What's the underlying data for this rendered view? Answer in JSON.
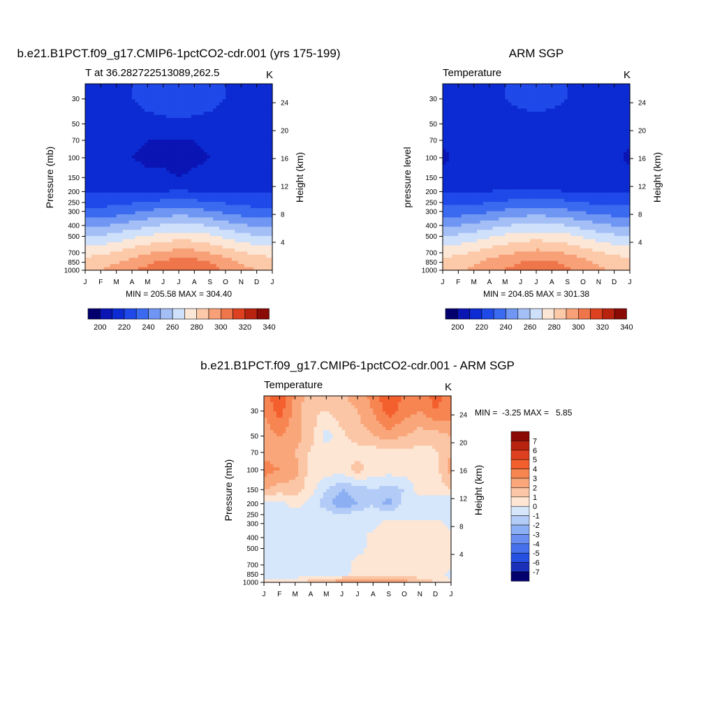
{
  "figure": {
    "panel1_title": "b.e21.B1PCT.f09_g17.CMIP6-1pctCO2-cdr.001 (yrs 175-199)",
    "panel2_title": "ARM SGP",
    "panel3_title": "b.e21.B1PCT.f09_g17.CMIP6-1pctCO2-cdr.001 - ARM SGP"
  },
  "chart_data": [
    {
      "type": "heatmap",
      "title": "b.e21.B1PCT.f09_g17.CMIP6-1pctCO2-cdr.001 (yrs 175-199)",
      "left_label": "T at 36.282722513089,262.5",
      "right_label": "K",
      "xlabel": "",
      "ylabel": "Pressure (mb)",
      "ylabel_right": "Height (km)",
      "x_ticks": [
        "J",
        "F",
        "M",
        "A",
        "M",
        "J",
        "J",
        "A",
        "S",
        "O",
        "N",
        "D",
        "J"
      ],
      "y_ticks": [
        "30",
        "50",
        "70",
        "100",
        "150",
        "200",
        "250",
        "300",
        "400",
        "500",
        "700",
        "850",
        "1000"
      ],
      "y_ticks_right": [
        "24",
        "20",
        "16",
        "12",
        "8",
        "4"
      ],
      "ylim": [
        1000,
        20
      ],
      "y_scale": "log",
      "stats": "MIN = 205.58 MAX = 304.40",
      "colorbar_labels": [
        "200",
        "220",
        "240",
        "260",
        "280",
        "300",
        "320",
        "340"
      ],
      "colorbar_colors": [
        "#03006e",
        "#0a15b4",
        "#0c2bd2",
        "#1f49e8",
        "#3a6af0",
        "#6f96f2",
        "#a4bff6",
        "#cfe0fb",
        "#fce6d6",
        "#fcc9a9",
        "#f8a077",
        "#ef764a",
        "#dd4120",
        "#b82310",
        "#8a0a06"
      ],
      "levels": [
        195,
        205,
        215,
        225,
        235,
        245,
        255,
        265,
        275,
        285,
        295,
        305,
        315,
        325,
        335
      ],
      "model_grid": {
        "pressure": [
          30,
          50,
          70,
          100,
          150,
          200,
          250,
          300,
          400,
          500,
          700,
          850,
          1000
        ],
        "months": [
          "J",
          "F",
          "M",
          "A",
          "M",
          "J",
          "J",
          "A",
          "S",
          "O",
          "N",
          "D",
          "J"
        ],
        "values": [
          [
            213,
            213,
            214,
            215,
            217,
            219,
            220,
            219,
            217,
            215,
            213,
            213,
            213
          ],
          [
            212,
            212,
            212,
            212,
            213,
            213,
            214,
            213,
            213,
            212,
            212,
            212,
            212
          ],
          [
            210,
            210,
            209,
            206,
            205,
            205,
            204,
            205,
            206,
            208,
            209,
            210,
            210
          ],
          [
            210,
            210,
            209,
            205,
            204,
            204,
            203,
            204,
            205,
            206,
            209,
            210,
            210
          ],
          [
            211,
            211,
            210,
            207,
            206,
            206,
            205,
            206,
            206,
            207,
            210,
            211,
            211
          ],
          [
            214,
            214,
            214,
            214,
            214,
            215,
            216,
            215,
            214,
            214,
            214,
            214,
            214
          ],
          [
            221,
            221,
            222,
            224,
            226,
            228,
            229,
            228,
            226,
            224,
            222,
            221,
            221
          ],
          [
            228,
            229,
            230,
            233,
            236,
            238,
            240,
            239,
            236,
            233,
            230,
            229,
            228
          ],
          [
            243,
            244,
            246,
            250,
            253,
            256,
            258,
            257,
            254,
            250,
            246,
            244,
            243
          ],
          [
            255,
            256,
            259,
            263,
            266,
            269,
            271,
            270,
            267,
            263,
            259,
            256,
            255
          ],
          [
            272,
            273,
            276,
            280,
            284,
            287,
            289,
            288,
            285,
            280,
            276,
            273,
            272
          ],
          [
            279,
            281,
            284,
            289,
            293,
            297,
            300,
            299,
            295,
            290,
            284,
            281,
            279
          ],
          [
            283,
            285,
            289,
            294,
            298,
            302,
            304,
            303,
            299,
            294,
            288,
            285,
            283
          ]
        ]
      }
    },
    {
      "type": "heatmap",
      "title": "ARM SGP",
      "left_label": "Temperature",
      "right_label": "K",
      "xlabel": "",
      "ylabel": "pressure level",
      "ylabel_right": "Height (km)",
      "x_ticks": [
        "J",
        "F",
        "M",
        "A",
        "M",
        "J",
        "J",
        "A",
        "S",
        "O",
        "N",
        "D",
        "J"
      ],
      "y_ticks": [
        "30",
        "50",
        "70",
        "100",
        "150",
        "200",
        "250",
        "300",
        "400",
        "500",
        "700",
        "850",
        "1000"
      ],
      "y_ticks_right": [
        "24",
        "20",
        "16",
        "12",
        "8",
        "4"
      ],
      "ylim": [
        1000,
        20
      ],
      "y_scale": "log",
      "stats": "MIN = 204.85 MAX = 301.38",
      "colorbar_labels": [
        "200",
        "220",
        "240",
        "260",
        "280",
        "300",
        "320",
        "340"
      ],
      "levels": [
        195,
        205,
        215,
        225,
        235,
        245,
        255,
        265,
        275,
        285,
        295,
        305,
        315,
        325,
        335
      ],
      "obs_grid": {
        "pressure": [
          30,
          50,
          70,
          100,
          150,
          200,
          250,
          300,
          400,
          500,
          700,
          850,
          1000
        ],
        "months": [
          "J",
          "F",
          "M",
          "A",
          "M",
          "J",
          "J",
          "A",
          "S",
          "O",
          "N",
          "D",
          "J"
        ],
        "values": [
          [
            212,
            212,
            213,
            214,
            215,
            217,
            218,
            217,
            215,
            213,
            212,
            212,
            212
          ],
          [
            210,
            210,
            211,
            211,
            211,
            212,
            212,
            212,
            211,
            211,
            211,
            211,
            210
          ],
          [
            206,
            206,
            207,
            208,
            208,
            208,
            207,
            208,
            208,
            207,
            206,
            207,
            206
          ],
          [
            204,
            206,
            207,
            208,
            206,
            205,
            205,
            205,
            206,
            207,
            208,
            206,
            204
          ],
          [
            207,
            208,
            209,
            210,
            209,
            208,
            207,
            207,
            208,
            209,
            210,
            209,
            207
          ],
          [
            214,
            214,
            214,
            215,
            216,
            216,
            217,
            216,
            215,
            215,
            214,
            214,
            214
          ],
          [
            222,
            222,
            223,
            225,
            227,
            229,
            230,
            229,
            227,
            225,
            223,
            222,
            222
          ],
          [
            229,
            230,
            231,
            234,
            237,
            239,
            240,
            239,
            237,
            234,
            231,
            230,
            229
          ],
          [
            244,
            245,
            247,
            251,
            254,
            257,
            258,
            257,
            255,
            251,
            247,
            245,
            244
          ],
          [
            256,
            257,
            260,
            264,
            267,
            270,
            271,
            270,
            268,
            264,
            260,
            257,
            256
          ],
          [
            272,
            273,
            276,
            280,
            283,
            286,
            288,
            287,
            284,
            280,
            276,
            273,
            272
          ],
          [
            278,
            280,
            283,
            288,
            291,
            295,
            297,
            296,
            293,
            289,
            283,
            280,
            278
          ],
          [
            281,
            283,
            287,
            292,
            296,
            299,
            301,
            300,
            297,
            292,
            287,
            283,
            281
          ]
        ]
      }
    },
    {
      "type": "heatmap",
      "title": "b.e21.B1PCT.f09_g17.CMIP6-1pctCO2-cdr.001 - ARM SGP",
      "left_label": "Temperature",
      "right_label": "K",
      "xlabel": "",
      "ylabel": "Pressure (mb)",
      "ylabel_right": "Height (km)",
      "x_ticks": [
        "J",
        "F",
        "M",
        "A",
        "M",
        "J",
        "J",
        "A",
        "S",
        "O",
        "N",
        "D",
        "J"
      ],
      "y_ticks": [
        "30",
        "50",
        "70",
        "100",
        "150",
        "200",
        "250",
        "300",
        "400",
        "500",
        "700",
        "850",
        "1000"
      ],
      "y_ticks_right": [
        "24",
        "20",
        "16",
        "12",
        "8",
        "4"
      ],
      "ylim": [
        1000,
        20
      ],
      "y_scale": "log",
      "stats": "MIN =  -3.25 MAX =   5.85",
      "colorbar_labels": [
        "7",
        "6",
        "5",
        "4",
        "3",
        "2",
        "1",
        "0",
        "-1",
        "-2",
        "-3",
        "-4",
        "-5",
        "-6",
        "-7"
      ],
      "colorbar_colors": [
        "#8a0a06",
        "#b82310",
        "#dd4120",
        "#f45f2e",
        "#f78552",
        "#f9a67a",
        "#fbc6a6",
        "#fde6d4",
        "#d6e6fb",
        "#b2cbf7",
        "#8caef2",
        "#6a8ff0",
        "#4670ec",
        "#2550e2",
        "#1a30b8",
        "#03006e"
      ],
      "levels": [
        -7,
        -6,
        -5,
        -4,
        -3,
        -2,
        -1,
        0,
        1,
        2,
        3,
        4,
        5,
        6,
        7
      ],
      "diff_grid": {
        "pressure": [
          20,
          30,
          50,
          70,
          100,
          150,
          200,
          250,
          300,
          400,
          500,
          700,
          850,
          1000
        ],
        "months": [
          "J",
          "F",
          "M",
          "A",
          "M",
          "J",
          "J",
          "A",
          "S",
          "O",
          "N",
          "D",
          "J"
        ],
        "values": [
          [
            3.5,
            5.0,
            3.0,
            1.5,
            1.2,
            2.0,
            2.5,
            3.5,
            5.0,
            4.0,
            3.5,
            4.5,
            3.5
          ],
          [
            3.0,
            4.5,
            2.5,
            1.2,
            1.0,
            1.5,
            2.0,
            3.0,
            4.5,
            3.5,
            3.0,
            4.0,
            3.5
          ],
          [
            2.5,
            3.0,
            2.5,
            1.5,
            -0.5,
            0.8,
            1.5,
            2.0,
            2.5,
            2.0,
            1.5,
            1.5,
            2.0
          ],
          [
            2.5,
            2.5,
            2.0,
            0.8,
            0.5,
            0.5,
            0.5,
            0.5,
            0.5,
            0.8,
            0.5,
            0.8,
            2.0
          ],
          [
            3.5,
            3.0,
            2.5,
            0.5,
            0.5,
            0.5,
            1.5,
            0.5,
            0.5,
            0.5,
            0.5,
            0.5,
            2.5
          ],
          [
            2.0,
            1.5,
            1.5,
            0.5,
            -1.0,
            -2.0,
            -1.5,
            -1.0,
            -1.5,
            -1.0,
            0.5,
            0.5,
            1.0
          ],
          [
            -0.5,
            -0.5,
            0.5,
            -0.5,
            -1.5,
            -3.0,
            -2.0,
            -1.0,
            -2.5,
            -0.5,
            -0.5,
            -0.5,
            -1.0
          ],
          [
            -0.5,
            -0.5,
            -0.5,
            -0.5,
            -0.5,
            -1.0,
            -0.5,
            -0.5,
            -0.5,
            -0.5,
            -0.5,
            -0.5,
            -0.5
          ],
          [
            -0.5,
            -0.5,
            -0.5,
            -0.5,
            -0.5,
            -0.5,
            -0.5,
            -0.5,
            0.5,
            0.5,
            0.5,
            0.5,
            -0.5
          ],
          [
            -0.5,
            -0.5,
            -0.5,
            -0.5,
            -0.5,
            -0.5,
            -0.5,
            0.5,
            0.5,
            0.5,
            0.5,
            0.5,
            0.5
          ],
          [
            -0.5,
            -0.5,
            -0.5,
            -0.5,
            -0.5,
            -0.5,
            -0.5,
            0.5,
            0.5,
            0.5,
            0.5,
            0.5,
            0.5
          ],
          [
            -0.5,
            -0.5,
            -0.5,
            -0.5,
            -0.5,
            -0.5,
            0.5,
            0.5,
            0.5,
            0.5,
            0.5,
            0.5,
            0.5
          ],
          [
            -0.5,
            -0.5,
            -0.5,
            -0.5,
            -0.5,
            -0.5,
            0.5,
            0.5,
            0.5,
            0.5,
            0.5,
            0.5,
            -0.5
          ],
          [
            0.5,
            0.5,
            0.5,
            1.5,
            2.0,
            3.0,
            3.0,
            2.5,
            3.0,
            2.5,
            1.5,
            1.0,
            0.5
          ]
        ]
      }
    }
  ]
}
